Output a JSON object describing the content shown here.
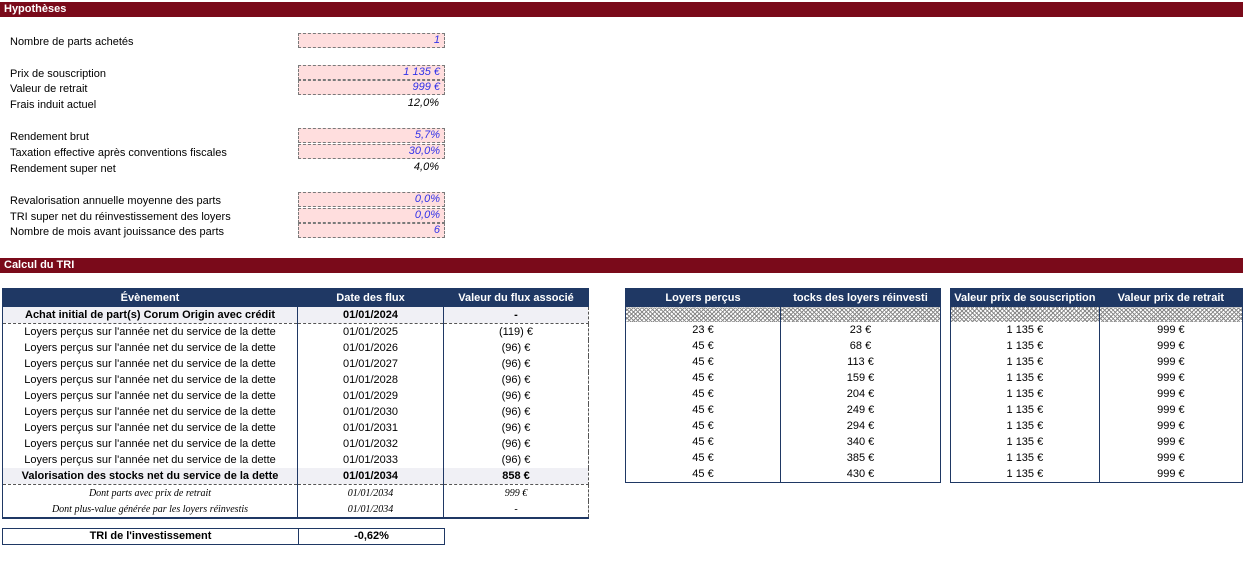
{
  "colors": {
    "maroon": "#7A0A1A",
    "navy": "#1F3864",
    "input_bg": "#FFDEDE",
    "input_text": "#3333E8"
  },
  "hypotheses": {
    "title": "Hypothèses",
    "fields": [
      {
        "label": "Nombre de parts achetés",
        "value": "1",
        "input": true
      },
      {
        "label": "Prix de souscription",
        "value": "1 135 €",
        "input": true
      },
      {
        "label": "Valeur de retrait",
        "value": "999 €",
        "input": true
      },
      {
        "label": "Frais induit actuel",
        "value": "12,0%",
        "input": false
      },
      {
        "label": "Rendement brut",
        "value": "5,7%",
        "input": true
      },
      {
        "label": "Taxation effective après conventions fiscales",
        "value": "30,0%",
        "input": true
      },
      {
        "label": "Rendement super net",
        "value": "4,0%",
        "input": false
      },
      {
        "label": "Revalorisation annuelle moyenne des parts",
        "value": "0,0%",
        "input": true
      },
      {
        "label": "TRI super net du réinvestissement des loyers",
        "value": "0,0%",
        "input": true
      },
      {
        "label": "Nombre de mois avant jouissance des parts",
        "value": "6",
        "input": true
      }
    ]
  },
  "calcul_tri": {
    "title": "Calcul du TRI"
  },
  "flux_table": {
    "headers": [
      "Évènement",
      "Date des flux",
      "Valeur du flux associé"
    ],
    "rows": [
      {
        "event": "Achat initial de part(s) Corum Origin avec crédit",
        "date": "01/01/2024",
        "value": "-",
        "style": "bold"
      },
      {
        "event": "Loyers perçus sur l'année net du service de la dette",
        "date": "01/01/2025",
        "value": "(119) €",
        "style": "normal"
      },
      {
        "event": "Loyers perçus sur l'année net du service de la dette",
        "date": "01/01/2026",
        "value": "(96) €",
        "style": "normal"
      },
      {
        "event": "Loyers perçus sur l'année net du service de la dette",
        "date": "01/01/2027",
        "value": "(96) €",
        "style": "normal"
      },
      {
        "event": "Loyers perçus sur l'année net du service de la dette",
        "date": "01/01/2028",
        "value": "(96) €",
        "style": "normal"
      },
      {
        "event": "Loyers perçus sur l'année net du service de la dette",
        "date": "01/01/2029",
        "value": "(96) €",
        "style": "normal"
      },
      {
        "event": "Loyers perçus sur l'année net du service de la dette",
        "date": "01/01/2030",
        "value": "(96) €",
        "style": "normal"
      },
      {
        "event": "Loyers perçus sur l'année net du service de la dette",
        "date": "01/01/2031",
        "value": "(96) €",
        "style": "normal"
      },
      {
        "event": "Loyers perçus sur l'année net du service de la dette",
        "date": "01/01/2032",
        "value": "(96) €",
        "style": "normal"
      },
      {
        "event": "Loyers perçus sur l'année net du service de la dette",
        "date": "01/01/2033",
        "value": "(96) €",
        "style": "normal"
      },
      {
        "event": "Valorisation des stocks net du service de la dette",
        "date": "01/01/2034",
        "value": "858 €",
        "style": "bold"
      },
      {
        "event": "Dont parts avec prix de retrait",
        "date": "01/01/2034",
        "value": "999 €",
        "style": "script"
      },
      {
        "event": "Dont plus-value générée par les loyers réinvestis",
        "date": "01/01/2034",
        "value": "-",
        "style": "script"
      }
    ]
  },
  "tri_result": {
    "label": "TRI de l'investissement",
    "value": "-0,62%"
  },
  "loyers_table": {
    "headers": [
      "Loyers perçus",
      "tocks des loyers réinvesti"
    ],
    "rows": [
      [
        "23 €",
        "23 €"
      ],
      [
        "45 €",
        "68 €"
      ],
      [
        "45 €",
        "113 €"
      ],
      [
        "45 €",
        "159 €"
      ],
      [
        "45 €",
        "204 €"
      ],
      [
        "45 €",
        "249 €"
      ],
      [
        "45 €",
        "294 €"
      ],
      [
        "45 €",
        "340 €"
      ],
      [
        "45 €",
        "385 €"
      ],
      [
        "45 €",
        "430 €"
      ]
    ]
  },
  "valeurs_table": {
    "headers": [
      "Valeur prix de souscription",
      "Valeur prix de retrait"
    ],
    "rows": [
      [
        "1 135 €",
        "999 €"
      ],
      [
        "1 135 €",
        "999 €"
      ],
      [
        "1 135 €",
        "999 €"
      ],
      [
        "1 135 €",
        "999 €"
      ],
      [
        "1 135 €",
        "999 €"
      ],
      [
        "1 135 €",
        "999 €"
      ],
      [
        "1 135 €",
        "999 €"
      ],
      [
        "1 135 €",
        "999 €"
      ],
      [
        "1 135 €",
        "999 €"
      ],
      [
        "1 135 €",
        "999 €"
      ]
    ]
  }
}
